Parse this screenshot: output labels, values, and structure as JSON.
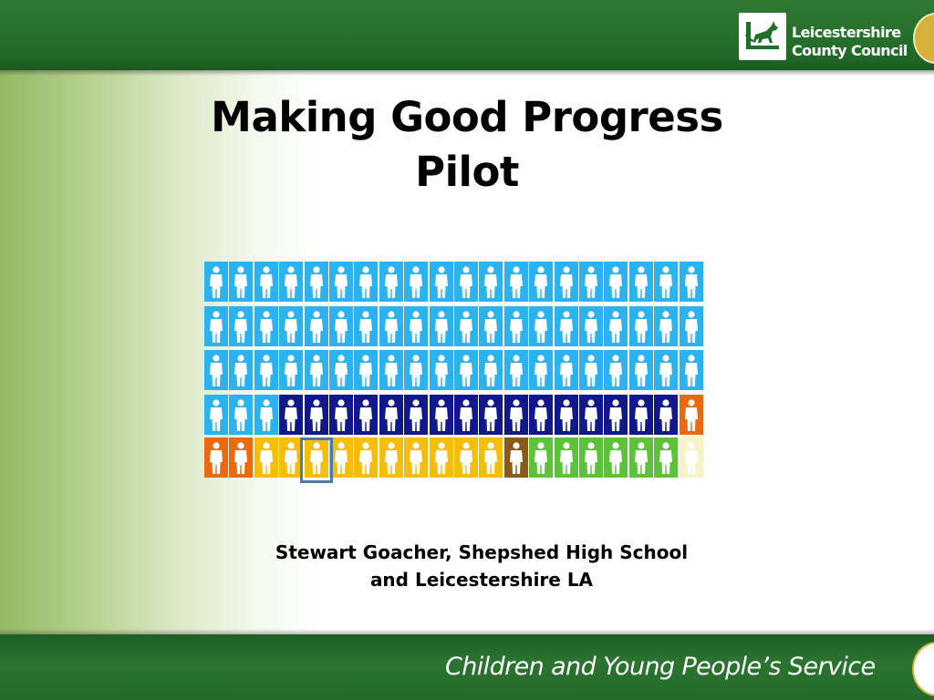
{
  "header": {
    "logo": {
      "line1": "Leicestershire",
      "line2": "County Council"
    }
  },
  "title": {
    "line1": "Making Good Progress",
    "line2": "Pilot"
  },
  "people_grid": {
    "colors": {
      "light_blue": "#2ab3ef",
      "dark_blue": "#10188a",
      "orange": "#e96a12",
      "yellow": "#f5be0a",
      "brown": "#8a5a1a",
      "green": "#5cc23a",
      "cream": "#f6f3c9"
    },
    "rows": [
      [
        "light_blue",
        "light_blue",
        "light_blue",
        "light_blue",
        "light_blue",
        "light_blue",
        "light_blue",
        "light_blue",
        "light_blue",
        "light_blue",
        "light_blue",
        "light_blue",
        "light_blue",
        "light_blue",
        "light_blue",
        "light_blue",
        "light_blue",
        "light_blue",
        "light_blue",
        "light_blue"
      ],
      [
        "light_blue",
        "light_blue",
        "light_blue",
        "light_blue",
        "light_blue",
        "light_blue",
        "light_blue",
        "light_blue",
        "light_blue",
        "light_blue",
        "light_blue",
        "light_blue",
        "light_blue",
        "light_blue",
        "light_blue",
        "light_blue",
        "light_blue",
        "light_blue",
        "light_blue",
        "light_blue"
      ],
      [
        "light_blue",
        "light_blue",
        "light_blue",
        "light_blue",
        "light_blue",
        "light_blue",
        "light_blue",
        "light_blue",
        "light_blue",
        "light_blue",
        "light_blue",
        "light_blue",
        "light_blue",
        "light_blue",
        "light_blue",
        "light_blue",
        "light_blue",
        "light_blue",
        "light_blue",
        "light_blue"
      ],
      [
        "light_blue",
        "light_blue",
        "light_blue",
        "dark_blue",
        "dark_blue",
        "dark_blue",
        "dark_blue",
        "dark_blue",
        "dark_blue",
        "dark_blue",
        "dark_blue",
        "dark_blue",
        "dark_blue",
        "dark_blue",
        "dark_blue",
        "dark_blue",
        "dark_blue",
        "dark_blue",
        "dark_blue",
        "orange"
      ],
      [
        "orange",
        "orange",
        "yellow",
        "yellow",
        "yellow",
        "yellow",
        "yellow",
        "yellow",
        "yellow",
        "yellow",
        "yellow",
        "yellow",
        "brown",
        "green",
        "green",
        "green",
        "green",
        "green",
        "green",
        "cream"
      ]
    ],
    "highlighted": {
      "row": 5,
      "column": 5
    }
  },
  "author": {
    "line1": "Stewart Goacher, Shepshed High School",
    "line2": "and Leicestershire LA"
  },
  "footer": {
    "service": "Children and Young People’s Service"
  }
}
